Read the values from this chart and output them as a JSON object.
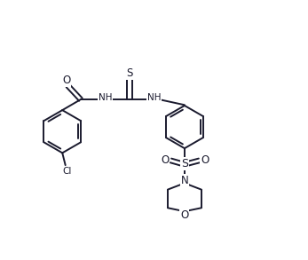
{
  "bg_color": "#ffffff",
  "line_color": "#1a1a2e",
  "line_width": 1.4,
  "figsize": [
    3.47,
    2.93
  ],
  "dpi": 100,
  "font_size": 7.5,
  "font_color": "#1a1a2e",
  "xlim": [
    -0.5,
    9.5
  ],
  "ylim": [
    -5.5,
    2.0
  ]
}
